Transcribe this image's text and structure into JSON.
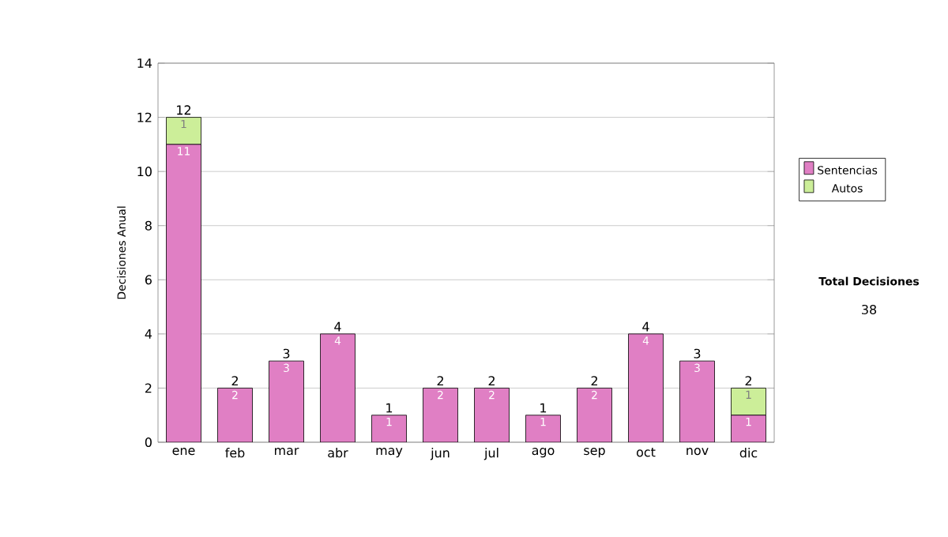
{
  "chart_data": {
    "type": "bar",
    "stacked": true,
    "ylabel": "Decisiones Anual",
    "categories": [
      "ene",
      "feb",
      "mar",
      "abr",
      "may",
      "jun",
      "jul",
      "ago",
      "sep",
      "oct",
      "nov",
      "dic"
    ],
    "series": [
      {
        "name": "Sentencias",
        "color": "#e07fc4",
        "values": [
          11,
          2,
          3,
          4,
          1,
          2,
          2,
          1,
          2,
          4,
          3,
          1
        ],
        "value_labels": [
          "11",
          "2",
          "3",
          "4",
          "1",
          "2",
          "2",
          "1",
          "2",
          "4",
          "3",
          "1"
        ]
      },
      {
        "name": "Autos",
        "color": "#ccee99",
        "values": [
          1,
          0,
          0,
          0,
          0,
          0,
          0,
          0,
          0,
          0,
          0,
          1
        ],
        "value_labels": [
          "1",
          null,
          null,
          null,
          null,
          null,
          null,
          null,
          null,
          null,
          null,
          "1"
        ]
      }
    ],
    "totals": [
      "12",
      "2",
      "3",
      "4",
      "1",
      "2",
      "2",
      "1",
      "2",
      "4",
      "3",
      "2"
    ],
    "ylim": [
      0,
      14
    ],
    "yticks": [
      0,
      2,
      4,
      6,
      8,
      10,
      12,
      14
    ],
    "grid": "y",
    "legend": "right",
    "annotations": [
      "Total Decisiones",
      "38"
    ]
  }
}
